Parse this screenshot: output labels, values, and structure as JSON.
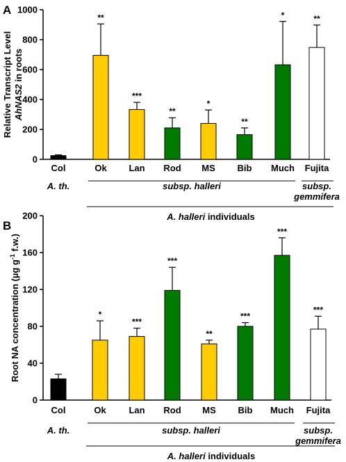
{
  "colors": {
    "yellow": "#FFCC00",
    "green": "#007A00",
    "black": "#000000",
    "white": "#FFFFFF"
  },
  "chart_data": [
    {
      "panel_label": "A",
      "type": "bar",
      "ylabel_line1": "Relative Transcript Level",
      "ylabel_gene": "AhNAS2",
      "ylabel_suffix": " in roots",
      "ylim": [
        0,
        1000
      ],
      "yticks": [
        0,
        200,
        400,
        600,
        800,
        1000
      ],
      "categories": [
        "Col",
        "Ok",
        "Lan",
        "Rod",
        "MS",
        "Bib",
        "Much",
        "Fujita"
      ],
      "values": [
        25,
        695,
        333,
        210,
        240,
        165,
        632,
        748
      ],
      "errors": [
        5,
        210,
        48,
        68,
        90,
        45,
        290,
        150
      ],
      "significance": [
        "",
        "**",
        "***",
        "**",
        "*",
        "**",
        "*",
        "**"
      ],
      "fills": [
        "black",
        "yellow",
        "yellow",
        "green",
        "yellow",
        "green",
        "green",
        "white"
      ],
      "groups": {
        "ath": "A. th.",
        "halleri": "subsp. halleri",
        "gem1": "subsp.",
        "gem2": "gemmifera",
        "ind_species": "A. halleri",
        "ind_suffix": " individuals"
      }
    },
    {
      "panel_label": "B",
      "type": "bar",
      "ylabel_main": "Root NA concentration (µg g",
      "ylabel_sup": "-1",
      "ylabel_end": " f.w.)",
      "ylim": [
        0,
        200
      ],
      "yticks": [
        0,
        40,
        80,
        120,
        160,
        200
      ],
      "categories": [
        "Col",
        "Ok",
        "Lan",
        "Rod",
        "MS",
        "Bib",
        "Much",
        "Fujita"
      ],
      "values": [
        23,
        65,
        69,
        119,
        61,
        80,
        157,
        77
      ],
      "errors": [
        5,
        21,
        9,
        25,
        4,
        4,
        19,
        14
      ],
      "significance": [
        "",
        "*",
        "***",
        "***",
        "**",
        "***",
        "***",
        "***"
      ],
      "fills": [
        "black",
        "yellow",
        "yellow",
        "green",
        "yellow",
        "green",
        "green",
        "white"
      ],
      "groups": {
        "ath": "A. th.",
        "halleri": "subsp. halleri",
        "gem1": "subsp.",
        "gem2": "gemmifera",
        "ind_species": "A. halleri",
        "ind_suffix": " individuals"
      }
    }
  ]
}
